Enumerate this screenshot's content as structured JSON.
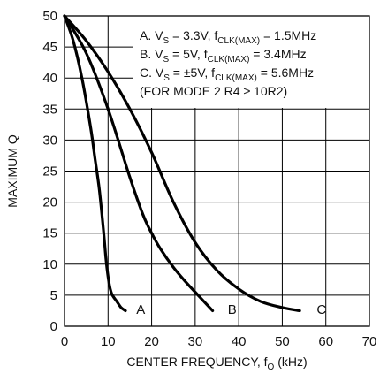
{
  "chart_data": {
    "type": "line",
    "xlabel": "CENTER FREQUENCY, f",
    "xlabel_sub": "O",
    "xlabel_unit": " (kHz)",
    "ylabel": "MAXIMUM Q",
    "xlim": [
      0,
      70
    ],
    "ylim": [
      0,
      50
    ],
    "x_ticks": [
      "0",
      "10",
      "20",
      "30",
      "40",
      "50",
      "60",
      "70"
    ],
    "y_ticks": [
      "0",
      "5",
      "10",
      "15",
      "20",
      "25",
      "30",
      "35",
      "40",
      "45",
      "50"
    ],
    "grid": true,
    "legend_position": "top-right",
    "legend_lines": [
      [
        {
          "t": "A. V"
        },
        {
          "t": "S",
          "sub": true
        },
        {
          "t": " = 3.3V, f"
        },
        {
          "t": "CLK(MAX)",
          "sub": true
        },
        {
          "t": " = 1.5MHz"
        }
      ],
      [
        {
          "t": "B. V"
        },
        {
          "t": "S",
          "sub": true
        },
        {
          "t": " = 5V, f"
        },
        {
          "t": "CLK(MAX)",
          "sub": true
        },
        {
          "t": " = 3.4MHz"
        }
      ],
      [
        {
          "t": "C. V"
        },
        {
          "t": "S",
          "sub": true
        },
        {
          "t": " = ±5V, f"
        },
        {
          "t": "CLK(MAX)",
          "sub": true
        },
        {
          "t": " = 5.6MHz"
        }
      ],
      [
        {
          "t": "(FOR MODE 2 R4 ≥ 10R2)"
        }
      ]
    ],
    "series": [
      {
        "name": "A",
        "x": [
          0,
          2,
          4,
          6,
          7,
          8,
          9,
          9.5,
          10,
          10.5,
          11,
          12,
          13,
          14
        ],
        "y": [
          50,
          46,
          40,
          32,
          27,
          22,
          15,
          11,
          8,
          6,
          5,
          4,
          3,
          2.5
        ],
        "label_x": 17.5,
        "label_y": 2
      },
      {
        "name": "B",
        "x": [
          0,
          5,
          10,
          15,
          18,
          20,
          22,
          25,
          28,
          30,
          32,
          34
        ],
        "y": [
          50,
          44,
          35,
          24,
          18,
          15,
          12.5,
          9.5,
          7,
          5.5,
          4,
          2.5
        ],
        "label_x": 38.5,
        "label_y": 2
      },
      {
        "name": "C",
        "x": [
          0,
          5,
          10,
          15,
          20,
          25,
          30,
          35,
          40,
          45,
          50,
          54
        ],
        "y": [
          50,
          46,
          41,
          35,
          28,
          20,
          13.5,
          9,
          6,
          4,
          3,
          2.5
        ],
        "label_x": 59,
        "label_y": 2
      }
    ]
  }
}
